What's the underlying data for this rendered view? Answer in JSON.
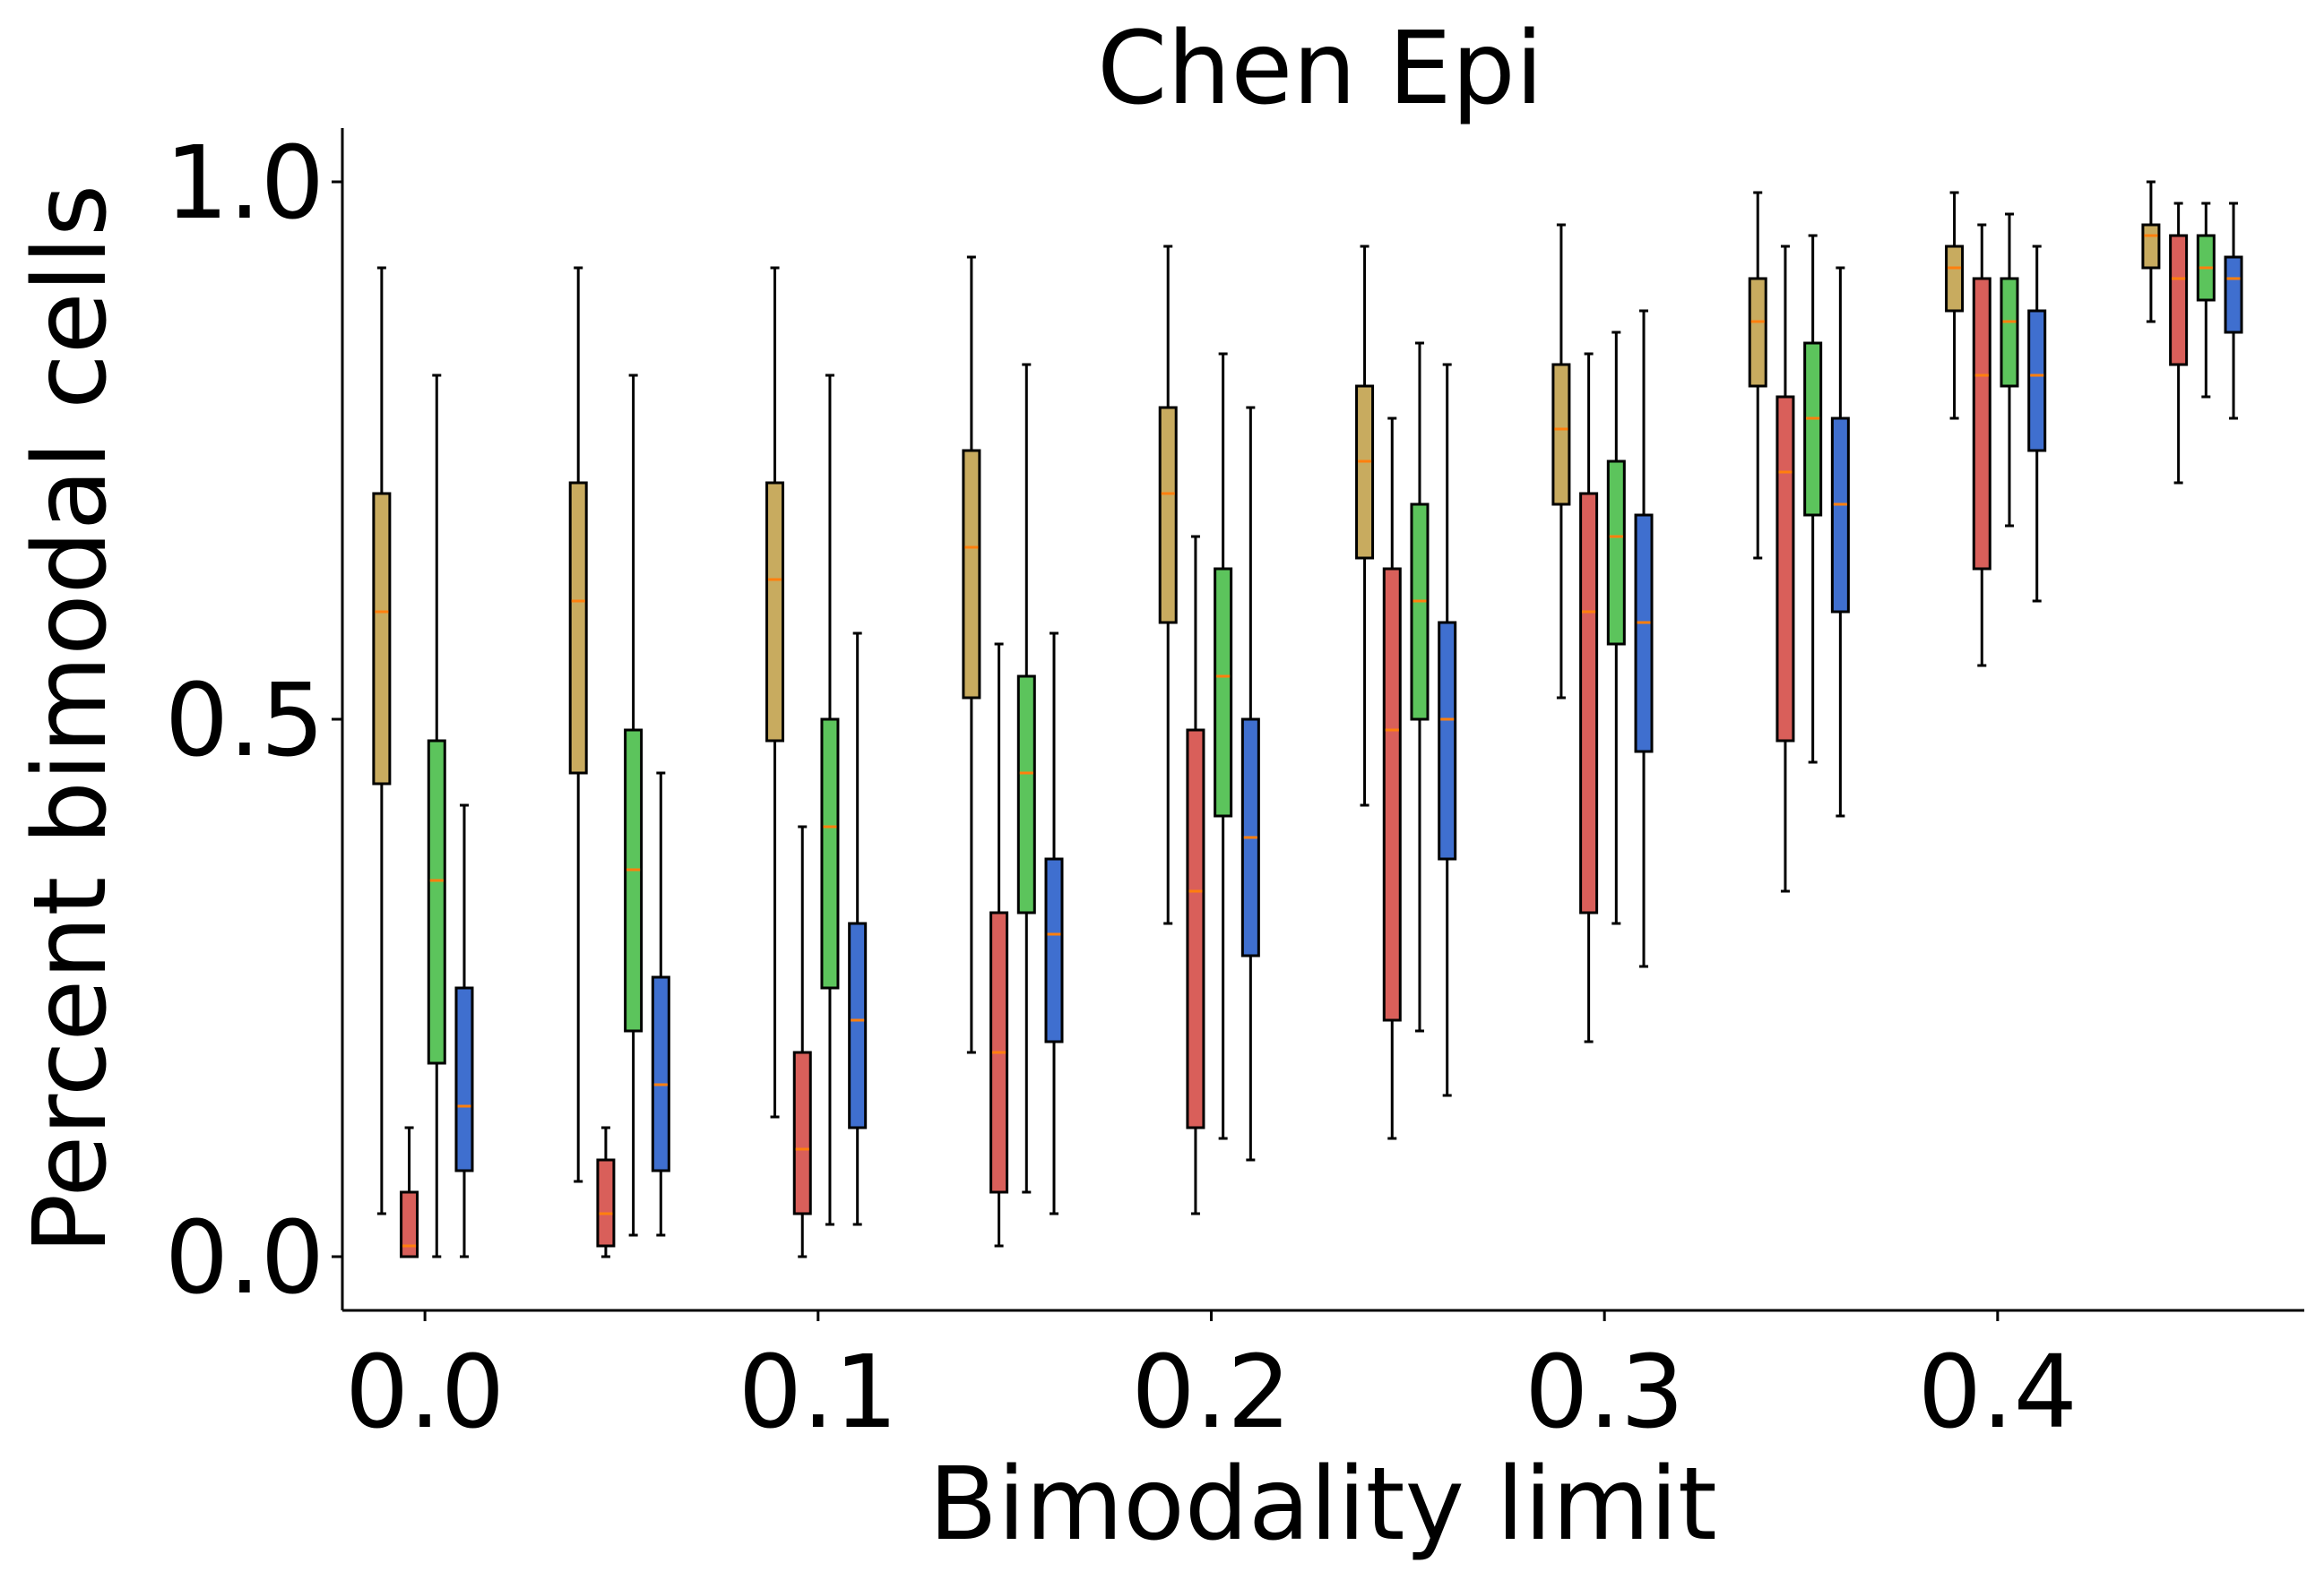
{
  "chart_data": {
    "type": "box",
    "title": "Chen Epi",
    "xlabel": "Bimodality limit",
    "ylabel": "Percent bimodal cells",
    "x_ticks": [
      0.0,
      0.1,
      0.2,
      0.3,
      0.4
    ],
    "x_tick_labels": [
      "0.0",
      "0.1",
      "0.2",
      "0.3",
      "0.4"
    ],
    "y_ticks": [
      0.0,
      0.5,
      1.0
    ],
    "y_tick_labels": [
      "0.0",
      "0.5",
      "1.0"
    ],
    "xlim": [
      -0.021,
      0.478
    ],
    "ylim": [
      -0.05,
      1.05
    ],
    "grid": false,
    "group_positions": [
      0.0,
      0.05,
      0.1,
      0.15,
      0.2,
      0.25,
      0.3,
      0.35,
      0.4,
      0.45
    ],
    "box_offsets": [
      -0.011,
      -0.004,
      0.003,
      0.01
    ],
    "median_color": "#ff7f0e",
    "series": [
      {
        "color": "#c8ab5f",
        "boxes": [
          {
            "whislo": 0.04,
            "q1": 0.44,
            "med": 0.6,
            "q3": 0.71,
            "whishi": 0.92
          },
          {
            "whislo": 0.07,
            "q1": 0.45,
            "med": 0.61,
            "q3": 0.72,
            "whishi": 0.92
          },
          {
            "whislo": 0.13,
            "q1": 0.48,
            "med": 0.63,
            "q3": 0.72,
            "whishi": 0.92
          },
          {
            "whislo": 0.19,
            "q1": 0.52,
            "med": 0.66,
            "q3": 0.75,
            "whishi": 0.93
          },
          {
            "whislo": 0.31,
            "q1": 0.59,
            "med": 0.71,
            "q3": 0.79,
            "whishi": 0.94
          },
          {
            "whislo": 0.42,
            "q1": 0.65,
            "med": 0.74,
            "q3": 0.81,
            "whishi": 0.94
          },
          {
            "whislo": 0.52,
            "q1": 0.7,
            "med": 0.77,
            "q3": 0.83,
            "whishi": 0.96
          },
          {
            "whislo": 0.65,
            "q1": 0.81,
            "med": 0.87,
            "q3": 0.91,
            "whishi": 0.99
          },
          {
            "whislo": 0.78,
            "q1": 0.88,
            "med": 0.92,
            "q3": 0.94,
            "whishi": 0.99
          },
          {
            "whislo": 0.87,
            "q1": 0.92,
            "med": 0.95,
            "q3": 0.96,
            "whishi": 1.0
          }
        ]
      },
      {
        "color": "#d95f5a",
        "boxes": [
          {
            "whislo": 0.0,
            "q1": 0.0,
            "med": 0.01,
            "q3": 0.06,
            "whishi": 0.12
          },
          {
            "whislo": 0.0,
            "q1": 0.01,
            "med": 0.04,
            "q3": 0.09,
            "whishi": 0.12
          },
          {
            "whislo": 0.0,
            "q1": 0.04,
            "med": 0.1,
            "q3": 0.19,
            "whishi": 0.4
          },
          {
            "whislo": 0.01,
            "q1": 0.06,
            "med": 0.19,
            "q3": 0.32,
            "whishi": 0.57
          },
          {
            "whislo": 0.04,
            "q1": 0.12,
            "med": 0.34,
            "q3": 0.49,
            "whishi": 0.67
          },
          {
            "whislo": 0.11,
            "q1": 0.22,
            "med": 0.49,
            "q3": 0.64,
            "whishi": 0.78
          },
          {
            "whislo": 0.2,
            "q1": 0.32,
            "med": 0.6,
            "q3": 0.71,
            "whishi": 0.84
          },
          {
            "whislo": 0.34,
            "q1": 0.48,
            "med": 0.73,
            "q3": 0.8,
            "whishi": 0.94
          },
          {
            "whislo": 0.55,
            "q1": 0.64,
            "med": 0.82,
            "q3": 0.91,
            "whishi": 0.96
          },
          {
            "whislo": 0.72,
            "q1": 0.83,
            "med": 0.91,
            "q3": 0.95,
            "whishi": 0.98
          }
        ]
      },
      {
        "color": "#5cc45c",
        "boxes": [
          {
            "whislo": 0.0,
            "q1": 0.18,
            "med": 0.35,
            "q3": 0.48,
            "whishi": 0.82
          },
          {
            "whislo": 0.02,
            "q1": 0.21,
            "med": 0.36,
            "q3": 0.49,
            "whishi": 0.82
          },
          {
            "whislo": 0.03,
            "q1": 0.25,
            "med": 0.4,
            "q3": 0.5,
            "whishi": 0.82
          },
          {
            "whislo": 0.06,
            "q1": 0.32,
            "med": 0.45,
            "q3": 0.54,
            "whishi": 0.83
          },
          {
            "whislo": 0.11,
            "q1": 0.41,
            "med": 0.54,
            "q3": 0.64,
            "whishi": 0.84
          },
          {
            "whislo": 0.21,
            "q1": 0.5,
            "med": 0.61,
            "q3": 0.7,
            "whishi": 0.85
          },
          {
            "whislo": 0.31,
            "q1": 0.57,
            "med": 0.67,
            "q3": 0.74,
            "whishi": 0.86
          },
          {
            "whislo": 0.46,
            "q1": 0.69,
            "med": 0.78,
            "q3": 0.85,
            "whishi": 0.95
          },
          {
            "whislo": 0.68,
            "q1": 0.81,
            "med": 0.87,
            "q3": 0.91,
            "whishi": 0.97
          },
          {
            "whislo": 0.8,
            "q1": 0.89,
            "med": 0.92,
            "q3": 0.95,
            "whishi": 0.98
          }
        ]
      },
      {
        "color": "#3f6fcf",
        "boxes": [
          {
            "whislo": 0.0,
            "q1": 0.08,
            "med": 0.14,
            "q3": 0.25,
            "whishi": 0.42
          },
          {
            "whislo": 0.02,
            "q1": 0.08,
            "med": 0.16,
            "q3": 0.26,
            "whishi": 0.45
          },
          {
            "whislo": 0.03,
            "q1": 0.12,
            "med": 0.22,
            "q3": 0.31,
            "whishi": 0.58
          },
          {
            "whislo": 0.04,
            "q1": 0.2,
            "med": 0.3,
            "q3": 0.37,
            "whishi": 0.58
          },
          {
            "whislo": 0.09,
            "q1": 0.28,
            "med": 0.39,
            "q3": 0.5,
            "whishi": 0.79
          },
          {
            "whislo": 0.15,
            "q1": 0.37,
            "med": 0.5,
            "q3": 0.59,
            "whishi": 0.83
          },
          {
            "whislo": 0.27,
            "q1": 0.47,
            "med": 0.59,
            "q3": 0.69,
            "whishi": 0.88
          },
          {
            "whislo": 0.41,
            "q1": 0.6,
            "med": 0.7,
            "q3": 0.78,
            "whishi": 0.92
          },
          {
            "whislo": 0.61,
            "q1": 0.75,
            "med": 0.82,
            "q3": 0.88,
            "whishi": 0.94
          },
          {
            "whislo": 0.78,
            "q1": 0.86,
            "med": 0.91,
            "q3": 0.93,
            "whishi": 0.98
          }
        ]
      }
    ]
  }
}
